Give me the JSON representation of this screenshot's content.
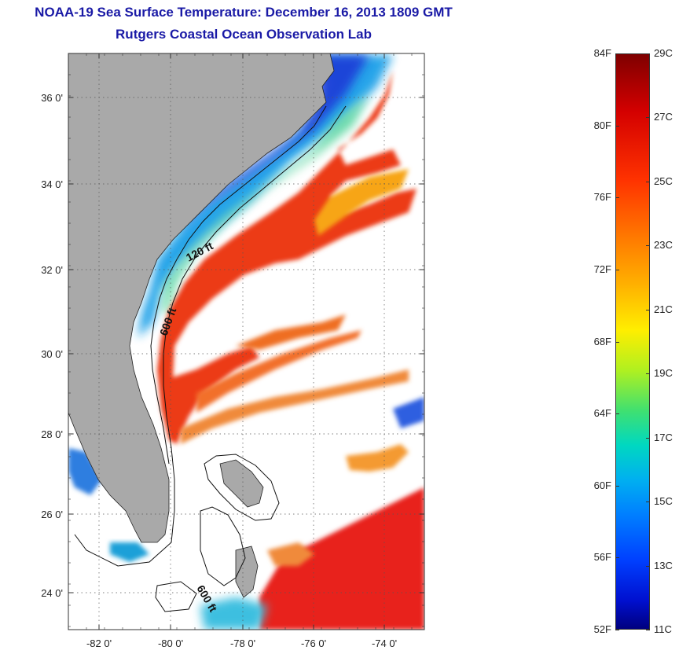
{
  "title": {
    "line1": "NOAA-19 Sea Surface Temperature:  December 16, 2013 1809 GMT",
    "line2": "Rutgers Coastal Ocean Observation Lab"
  },
  "map": {
    "lat_labels": [
      "36 0'",
      "34 0'",
      "32 0'",
      "30 0'",
      "28 0'",
      "26 0'",
      "24 0'"
    ],
    "lon_labels": [
      "-82 0'",
      "-80 0'",
      "-78 0'",
      "-76 0'",
      "-74 0'"
    ],
    "contour_labels": [
      "120 ft",
      "600 ft",
      "600 ft"
    ],
    "colors": {
      "land": "#a9a9a9",
      "cloud": "#ffffff",
      "cold": "#1f3fd6",
      "warm": "#e8221a"
    }
  },
  "colorbar": {
    "fahrenheit_labels": [
      "84F",
      "80F",
      "76F",
      "72F",
      "68F",
      "64F",
      "60F",
      "56F",
      "52F"
    ],
    "celsius_labels": [
      "29C",
      "27C",
      "25C",
      "23C",
      "21C",
      "19C",
      "17C",
      "15C",
      "13C",
      "11C"
    ],
    "range_c": [
      11,
      29
    ],
    "range_f": [
      52,
      84
    ]
  }
}
